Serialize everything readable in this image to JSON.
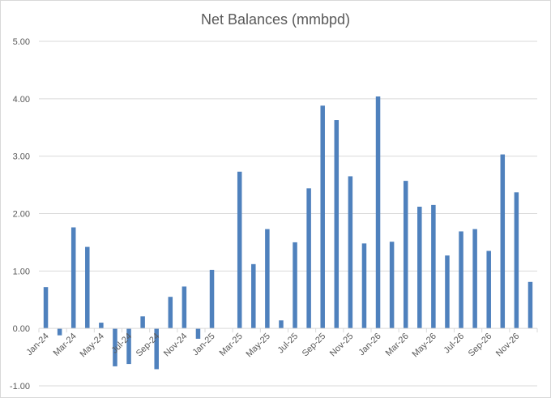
{
  "chart_data": {
    "type": "bar",
    "title": "Net Balances (mmbpd)",
    "xlabel": "",
    "ylabel": "",
    "ylim": [
      -1.0,
      5.0
    ],
    "yticks": [
      "-1.00",
      "0.00",
      "1.00",
      "2.00",
      "3.00",
      "4.00",
      "5.00"
    ],
    "grid": true,
    "legend": null,
    "bar_color": "#4f81bd",
    "categories": [
      "Jan-24",
      "Feb-24",
      "Mar-24",
      "Apr-24",
      "May-24",
      "Jun-24",
      "Jul-24",
      "Aug-24",
      "Sep-24",
      "Oct-24",
      "Nov-24",
      "Dec-24",
      "Jan-25",
      "Feb-25",
      "Mar-25",
      "Apr-25",
      "May-25",
      "Jun-25",
      "Jul-25",
      "Aug-25",
      "Sep-25",
      "Oct-25",
      "Nov-25",
      "Dec-25",
      "Jan-26",
      "Feb-26",
      "Mar-26",
      "Apr-26",
      "May-26",
      "Jun-26",
      "Jul-26",
      "Aug-26",
      "Sep-26",
      "Oct-26",
      "Nov-26",
      "Dec-26"
    ],
    "xtick_labels_shown": [
      "Jan-24",
      "Mar-24",
      "May-24",
      "Jul-24",
      "Sep-24",
      "Nov-24",
      "Jan-25",
      "Mar-25",
      "May-25",
      "Jul-25",
      "Sep-25",
      "Nov-25",
      "Jan-26",
      "Mar-26",
      "May-26",
      "Jul-26",
      "Sep-26",
      "Nov-26"
    ],
    "values": [
      0.72,
      -0.12,
      1.76,
      1.42,
      0.1,
      -0.66,
      -0.62,
      0.21,
      -0.71,
      0.55,
      0.73,
      -0.18,
      1.02,
      0.0,
      2.73,
      1.12,
      1.73,
      0.14,
      1.5,
      2.44,
      3.88,
      3.63,
      2.65,
      1.48,
      4.04,
      1.51,
      2.57,
      2.12,
      2.15,
      1.27,
      1.69,
      1.73,
      1.35,
      3.03,
      2.37,
      0.81
    ]
  }
}
